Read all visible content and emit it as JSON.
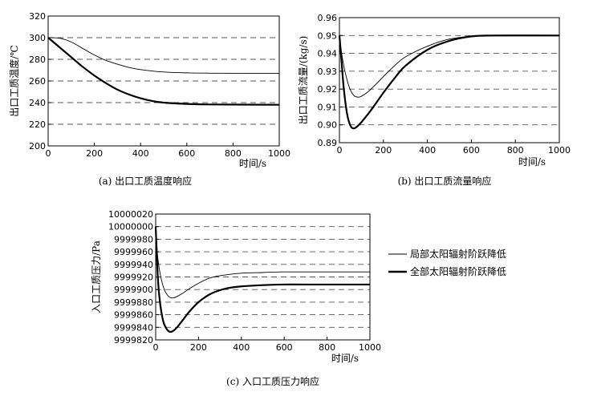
{
  "chart_data": [
    {
      "type": "line",
      "caption": "(a) 出口工质温度响应",
      "xlabel": "时间/s",
      "ylabel": "出口工质温度/℃",
      "xlim": [
        0,
        1000
      ],
      "ylim": [
        200,
        320
      ],
      "xticks": [
        0,
        200,
        400,
        600,
        800,
        1000
      ],
      "yticks": [
        200,
        220,
        240,
        260,
        280,
        300,
        320
      ],
      "grid_dashed_at": [
        220,
        240,
        260,
        280,
        300
      ],
      "series": [
        {
          "name": "局部太阳辐射阶跃降低",
          "style": "thin",
          "x": [
            0,
            50,
            100,
            150,
            200,
            250,
            300,
            350,
            400,
            450,
            500,
            600,
            700,
            1000
          ],
          "y": [
            300,
            299.5,
            296,
            290,
            284,
            279,
            275.5,
            272.5,
            270.5,
            269.2,
            268.3,
            267.5,
            267.2,
            267
          ]
        },
        {
          "name": "全部太阳辐射阶跃降低",
          "style": "thick",
          "x": [
            0,
            50,
            100,
            150,
            200,
            250,
            300,
            350,
            400,
            450,
            500,
            600,
            700,
            1000
          ],
          "y": [
            300,
            291,
            282,
            273,
            265,
            258,
            252,
            247.5,
            244,
            241.5,
            240,
            238.8,
            238.3,
            238
          ]
        }
      ]
    },
    {
      "type": "line",
      "caption": "(b) 出口工质流量响应",
      "xlabel": "时间/s",
      "ylabel": "出口工质流量/(kg/s)",
      "xlim": [
        0,
        1000
      ],
      "ylim": [
        0.89,
        0.96
      ],
      "xticks": [
        0,
        200,
        400,
        600,
        800,
        1000
      ],
      "yticks": [
        0.89,
        0.9,
        0.91,
        0.92,
        0.93,
        0.94,
        0.95,
        0.96
      ],
      "ytick_labels": [
        "0.89",
        "0.90",
        "0.91",
        "0.92",
        "0.93",
        "0.94",
        "0.95",
        "0.96"
      ],
      "grid_dashed_at": [
        0.9,
        0.91,
        0.92,
        0.93,
        0.94,
        0.95
      ],
      "series": [
        {
          "name": "局部太阳辐射阶跃降低",
          "style": "thin",
          "x": [
            0,
            10,
            25,
            45,
            65,
            85,
            100,
            130,
            160,
            200,
            250,
            300,
            400,
            500,
            600,
            700,
            1000
          ],
          "y": [
            0.95,
            0.94,
            0.93,
            0.921,
            0.9165,
            0.9155,
            0.916,
            0.9185,
            0.922,
            0.927,
            0.933,
            0.938,
            0.944,
            0.948,
            0.9495,
            0.95,
            0.95
          ]
        },
        {
          "name": "全部太阳辐射阶跃降低",
          "style": "thick",
          "x": [
            0,
            10,
            20,
            35,
            50,
            65,
            80,
            100,
            130,
            160,
            200,
            250,
            300,
            400,
            500,
            600,
            700,
            1000
          ],
          "y": [
            0.95,
            0.935,
            0.92,
            0.906,
            0.8995,
            0.898,
            0.899,
            0.9015,
            0.906,
            0.911,
            0.918,
            0.926,
            0.933,
            0.942,
            0.947,
            0.9495,
            0.95,
            0.95
          ]
        }
      ]
    },
    {
      "type": "line",
      "caption": "(c) 入口工质压力响应",
      "xlabel": "时间/s",
      "ylabel": "入口工质压力/Pa",
      "xlim": [
        0,
        1000
      ],
      "ylim": [
        9999820,
        10000020
      ],
      "xticks": [
        0,
        200,
        400,
        600,
        800,
        1000
      ],
      "yticks": [
        9999820,
        9999840,
        9999860,
        9999880,
        9999900,
        9999920,
        9999940,
        9999960,
        9999980,
        10000000,
        10000020
      ],
      "grid_dashed_at": [
        9999840,
        9999860,
        9999880,
        9999900,
        9999920,
        9999940,
        9999960,
        9999980,
        10000000
      ],
      "series": [
        {
          "name": "局部太阳辐射阶跃降低",
          "style": "thin",
          "x": [
            0,
            10,
            25,
            40,
            55,
            70,
            85,
            100,
            130,
            160,
            200,
            250,
            300,
            400,
            500,
            600,
            1000
          ],
          "y": [
            10000000,
            9999950,
            9999918,
            9999900,
            9999891,
            9999887,
            9999887,
            9999889,
            9999895,
            9999902,
            9999910,
            9999918,
            9999922,
            9999926,
            9999927,
            9999928,
            9999928
          ]
        },
        {
          "name": "全部太阳辐射阶跃降低",
          "style": "thick",
          "x": [
            0,
            10,
            20,
            35,
            50,
            65,
            80,
            100,
            130,
            160,
            200,
            250,
            300,
            350,
            400,
            500,
            600,
            700,
            1000
          ],
          "y": [
            10000000,
            9999920,
            9999880,
            9999850,
            9999838,
            9999833,
            9999834,
            9999840,
            9999853,
            9999866,
            9999880,
            9999892,
            9999899,
            9999903,
            9999905,
            9999907,
            9999908,
            9999908,
            9999908
          ]
        }
      ]
    }
  ],
  "legend": {
    "items": [
      {
        "label": "局部太阳辐射阶跃降低",
        "style": "thin"
      },
      {
        "label": "全部太阳辐射阶跃降低",
        "style": "thick"
      }
    ]
  }
}
